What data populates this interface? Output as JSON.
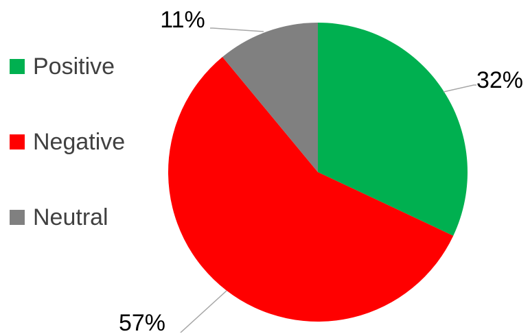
{
  "chart_data": {
    "type": "pie",
    "title": "",
    "categories": [
      "Positive",
      "Negative",
      "Neutral"
    ],
    "values": [
      32,
      57,
      11
    ],
    "data_labels": [
      "32%",
      "57%",
      "11%"
    ],
    "colors": [
      "#00b050",
      "#ff0000",
      "#808080"
    ],
    "legend": {
      "position": "left",
      "entries": [
        "Positive",
        "Negative",
        "Neutral"
      ]
    },
    "start_angle": "12 o'clock",
    "direction": "clockwise"
  }
}
